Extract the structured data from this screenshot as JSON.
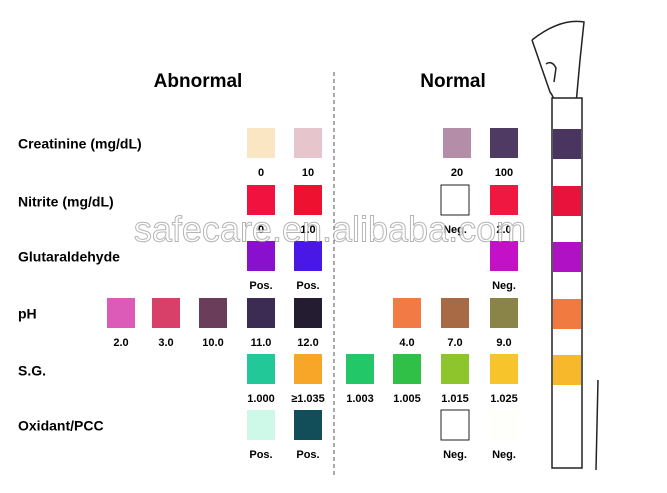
{
  "header": {
    "left": "Abnormal",
    "right": "Normal"
  },
  "watermark": "safecare.en.alibaba.com",
  "rows": [
    {
      "label": "Creatinine (mg/dL)",
      "swatches": [
        {
          "color": "#fbe6c4",
          "text": "0"
        },
        {
          "color": "#e6c6cc",
          "text": "10"
        },
        {
          "color": "#b48ea8",
          "text": "20"
        },
        {
          "color": "#4e3a62",
          "text": "100"
        }
      ]
    },
    {
      "label": "Nitrite (mg/dL)",
      "swatches": [
        {
          "color": "#f2123f",
          "text": "0"
        },
        {
          "color": "#ee1230",
          "text": "1.0"
        },
        {
          "color": "#ffffff",
          "text": "Neg."
        },
        {
          "color": "#ee1840",
          "text": "2.0"
        }
      ]
    },
    {
      "label": "Glutaraldehyde",
      "swatches": [
        {
          "color": "#8a10d0",
          "text": "Pos."
        },
        {
          "color": "#4a18e6",
          "text": "Pos."
        },
        {
          "color": "#c411c8",
          "text": "Neg."
        }
      ]
    },
    {
      "label": "pH",
      "swatches": [
        {
          "color": "#dc5ab8",
          "text": "2.0"
        },
        {
          "color": "#d8406a",
          "text": "3.0"
        },
        {
          "color": "#6a3e5a",
          "text": "10.0"
        },
        {
          "color": "#3c2c54",
          "text": "11.0"
        },
        {
          "color": "#241c30",
          "text": "12.0"
        },
        {
          "color": "#f27a44",
          "text": "4.0"
        },
        {
          "color": "#a86a44",
          "text": "7.0"
        },
        {
          "color": "#8a8448",
          "text": "9.0"
        }
      ]
    },
    {
      "label": "S.G.",
      "swatches": [
        {
          "color": "#22c898",
          "text": "1.000"
        },
        {
          "color": "#f8a628",
          "text": "≥1.035"
        },
        {
          "color": "#22c868",
          "text": "1.003"
        },
        {
          "color": "#30c048",
          "text": "1.005"
        },
        {
          "color": "#8ec42c",
          "text": "1.015"
        },
        {
          "color": "#f8c42c",
          "text": "1.025"
        }
      ]
    },
    {
      "label": "Oxidant/PCC",
      "swatches": [
        {
          "color": "#cef8e8",
          "text": "Pos."
        },
        {
          "color": "#114e5a",
          "text": "Pos."
        },
        {
          "color": "#ffffff",
          "text": "Neg."
        },
        {
          "color": "#fefefa",
          "text": "Neg."
        }
      ]
    }
  ],
  "strip": {
    "pads": [
      "#4a3560",
      "#e8123c",
      "#b011c4",
      "#f07a40",
      "#f7b82c",
      "#ffffff"
    ]
  }
}
